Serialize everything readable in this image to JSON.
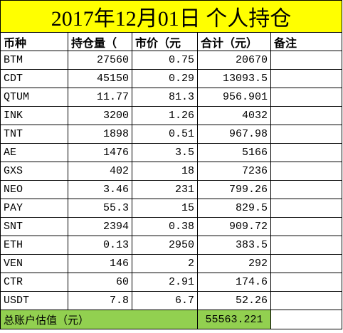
{
  "title": "2017年12月01日  个人持仓",
  "table": {
    "header": [
      "币种",
      "持仓量（",
      "市价（元",
      "合计（元）",
      "备注"
    ],
    "rows": [
      [
        "BTM",
        "27560",
        "0.75",
        "20670"
      ],
      [
        "CDT",
        "45150",
        "0.29",
        "13093.5"
      ],
      [
        "QTUM",
        "11.77",
        "81.3",
        "956.901"
      ],
      [
        "INK",
        "3200",
        "1.26",
        "4032"
      ],
      [
        "TNT",
        "1898",
        "0.51",
        "967.98"
      ],
      [
        "AE",
        "1476",
        "3.5",
        "5166"
      ],
      [
        "GXS",
        "402",
        "18",
        "7236"
      ],
      [
        "NEO",
        "3.46",
        "231",
        "799.26"
      ],
      [
        "PAY",
        "55.3",
        "15",
        "829.5"
      ],
      [
        "SNT",
        "2394",
        "0.38",
        "909.72"
      ],
      [
        "ETH",
        "0.13",
        "2950",
        "383.5"
      ],
      [
        "VEN",
        "146",
        "2",
        "292"
      ],
      [
        "CTR",
        "60",
        "2.91",
        "174.6"
      ],
      [
        "USDT",
        "7.8",
        "6.7",
        "52.26"
      ]
    ],
    "total": {
      "label": "总账户估值（元）",
      "value": "55563.221"
    }
  }
}
